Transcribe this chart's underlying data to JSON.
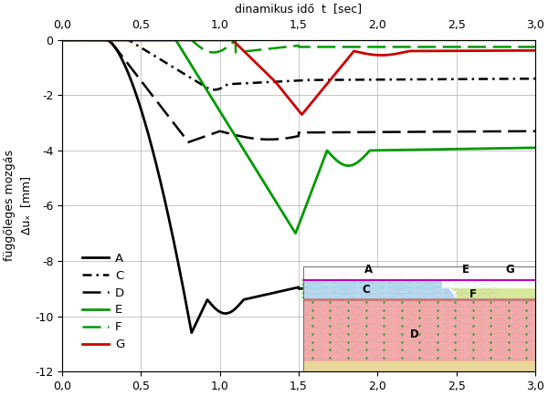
{
  "title_top": "dinamikus idő  t  [sec]",
  "ylabel_line1": "függőleges mozgás",
  "ylabel_line2": "Δuₓ  [mm]",
  "xlim": [
    0.0,
    3.0
  ],
  "ylim": [
    -12,
    0
  ],
  "xticks": [
    0.0,
    0.5,
    1.0,
    1.5,
    2.0,
    2.5,
    3.0
  ],
  "xtick_labels": [
    "0,0",
    "0,5",
    "1,0",
    "1,5",
    "2,0",
    "2,5",
    "3,0"
  ],
  "yticks": [
    0,
    -2,
    -4,
    -6,
    -8,
    -10,
    -12
  ],
  "ytick_labels": [
    "0",
    "-2",
    "-4",
    "-6",
    "-8",
    "-10",
    "-12"
  ],
  "bg_color": "#ffffff",
  "grid_color": "#b0b0b0",
  "legend_entries": [
    {
      "label": "A",
      "color": "#000000",
      "linestyle": "solid",
      "linewidth": 2.0
    },
    {
      "label": "C",
      "color": "#000000",
      "linestyle": "dashdot",
      "linewidth": 1.8
    },
    {
      "label": "D",
      "color": "#000000",
      "linestyle": "dashed",
      "linewidth": 1.8
    },
    {
      "label": "E",
      "color": "#009900",
      "linestyle": "solid",
      "linewidth": 2.0
    },
    {
      "label": "F",
      "color": "#009900",
      "linestyle": "dashed",
      "linewidth": 1.8
    },
    {
      "label": "G",
      "color": "#cc0000",
      "linestyle": "solid",
      "linewidth": 2.0
    }
  ],
  "diag_x0": 1.53,
  "diag_x1": 3.0,
  "diag_y0": -12.0,
  "diag_y1": -8.2
}
